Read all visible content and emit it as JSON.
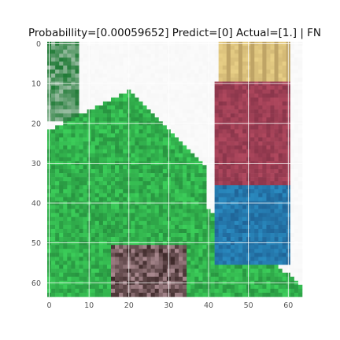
{
  "chart_data": {
    "type": "heatmap",
    "title": "Probabillity=[0.00059652] Predict=[0] Actual=[1.] | FN",
    "xlabel": "",
    "ylabel": "",
    "xlim": [
      0,
      63
    ],
    "ylim": [
      63,
      0
    ],
    "image_size": [
      64,
      64
    ],
    "x_ticks": [
      0,
      10,
      20,
      30,
      40,
      50,
      60
    ],
    "y_ticks": [
      0,
      10,
      20,
      30,
      40,
      50,
      60
    ],
    "grid": true,
    "colors": {
      "grid": "#ffffff",
      "tick_text": "#555555",
      "background": "#ffffff",
      "foliage": "#3ccf5a",
      "foliage_dark": "#1f7a35",
      "shirt": "#b0485e",
      "jeans": "#2a8bc0",
      "hair": "#e8cf86",
      "sky": "#f7f7f7"
    }
  }
}
